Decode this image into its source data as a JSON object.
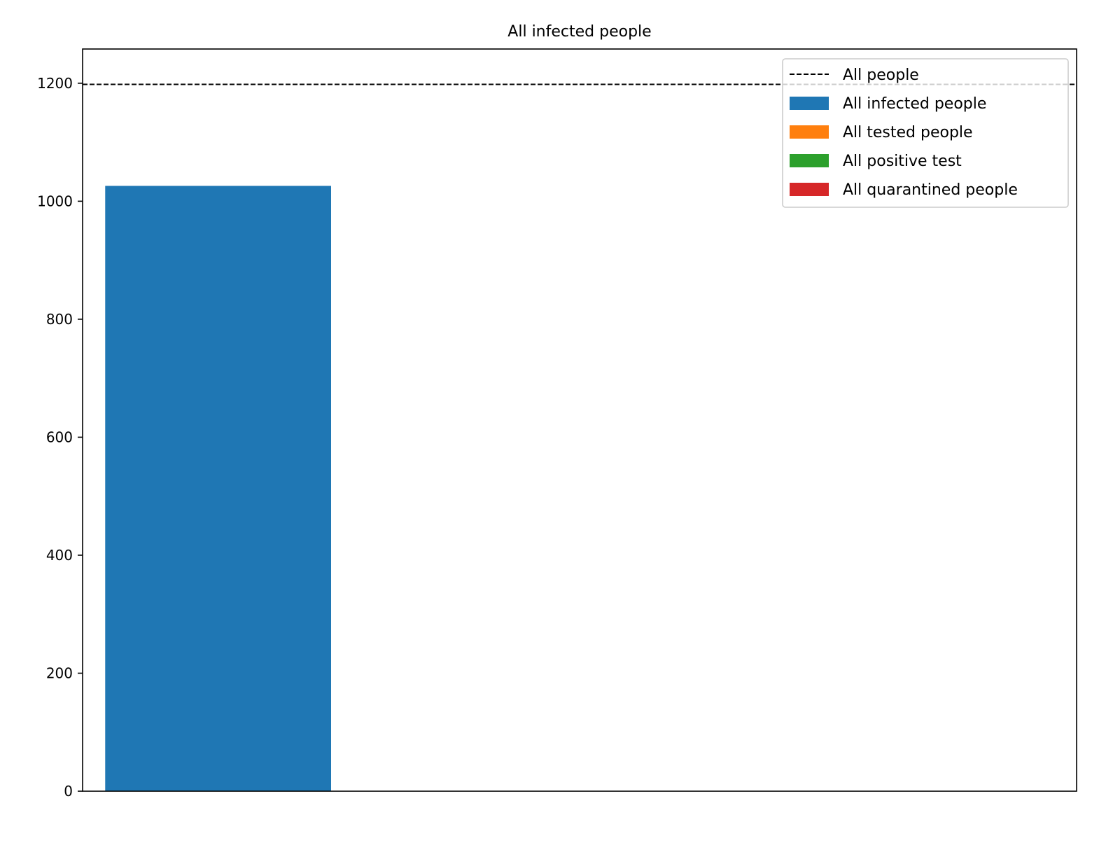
{
  "chart_data": {
    "type": "bar",
    "title": "All infected people",
    "xlabel": "",
    "ylabel": "",
    "ylim": [
      0,
      1258
    ],
    "yticks": [
      0,
      200,
      400,
      600,
      800,
      1000,
      1200
    ],
    "ytick_labels": [
      "0",
      "200",
      "400",
      "600",
      "800",
      "1000",
      "1200"
    ],
    "xlim": [
      -0.6,
      3.8
    ],
    "x_ticks_shown": false,
    "grid": false,
    "legend_position": "top-right",
    "reference_line": {
      "name": "All people",
      "value": 1198,
      "style": "dashed",
      "color": "#000000"
    },
    "series": [
      {
        "name": "All infected people",
        "x": 0,
        "value": 1026,
        "color": "#1f77b4"
      },
      {
        "name": "All tested people",
        "x": 1,
        "value": 0,
        "color": "#ff7f0e"
      },
      {
        "name": "All positive test",
        "x": 2,
        "value": 0,
        "color": "#2ca02c"
      },
      {
        "name": "All quarantined people",
        "x": 3,
        "value": 0,
        "color": "#d62728"
      }
    ],
    "bar_width": 1.0
  }
}
